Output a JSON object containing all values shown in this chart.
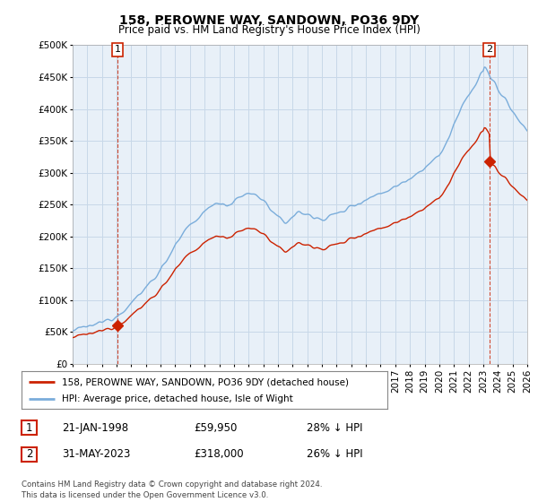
{
  "title": "158, PEROWNE WAY, SANDOWN, PO36 9DY",
  "subtitle": "Price paid vs. HM Land Registry's House Price Index (HPI)",
  "legend_line1": "158, PEROWNE WAY, SANDOWN, PO36 9DY (detached house)",
  "legend_line2": "HPI: Average price, detached house, Isle of Wight",
  "footer": "Contains HM Land Registry data © Crown copyright and database right 2024.\nThis data is licensed under the Open Government Licence v3.0.",
  "sale1_date": "21-JAN-1998",
  "sale1_price": 59950,
  "sale1_hpi_price": 83200,
  "sale1_label": "28% ↓ HPI",
  "sale2_date": "31-MAY-2023",
  "sale2_price": 318000,
  "sale2_hpi_price": 429000,
  "sale2_label": "26% ↓ HPI",
  "hpi_color": "#7aaddb",
  "sale_color": "#cc2200",
  "ylim": [
    0,
    500000
  ],
  "yticks": [
    0,
    50000,
    100000,
    150000,
    200000,
    250000,
    300000,
    350000,
    400000,
    450000,
    500000
  ],
  "plot_bg_color": "#e8f0f8",
  "background_color": "#ffffff",
  "grid_color": "#c8d8e8",
  "xmin": 1995.0,
  "xmax": 2026.0
}
